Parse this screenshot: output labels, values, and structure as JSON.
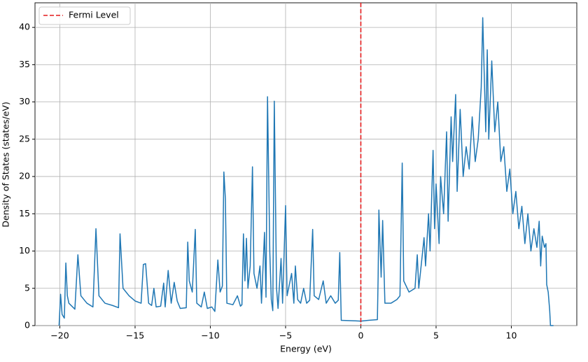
{
  "chart_data": {
    "type": "line",
    "xlabel": "Energy (eV)",
    "ylabel": "Density of States (states/eV)",
    "xlim": [
      -21.65,
      14.35
    ],
    "ylim": [
      0,
      43.3
    ],
    "xticks": [
      {
        "value": -20,
        "label": "−20"
      },
      {
        "value": -15,
        "label": "−15"
      },
      {
        "value": -10,
        "label": "−10"
      },
      {
        "value": -5,
        "label": "−5"
      },
      0,
      5,
      10
    ],
    "yticks": [
      0,
      5,
      10,
      15,
      20,
      25,
      30,
      35,
      40
    ],
    "grid": true,
    "legend": "upper left",
    "x": [
      -20.05,
      -19.95,
      -19.85,
      -19.7,
      -19.6,
      -19.5,
      -19.4,
      -19.0,
      -18.8,
      -18.6,
      -18.2,
      -17.8,
      -17.6,
      -17.4,
      -17.0,
      -16.5,
      -16.1,
      -16.0,
      -15.8,
      -15.4,
      -15.0,
      -14.6,
      -14.45,
      -14.3,
      -14.1,
      -13.9,
      -13.75,
      -13.6,
      -13.3,
      -13.1,
      -13.0,
      -12.8,
      -12.6,
      -12.4,
      -12.2,
      -12.0,
      -11.6,
      -11.5,
      -11.4,
      -11.2,
      -11.0,
      -10.9,
      -10.6,
      -10.4,
      -10.2,
      -9.9,
      -9.7,
      -9.5,
      -9.35,
      -9.2,
      -9.1,
      -9.0,
      -8.9,
      -8.5,
      -8.2,
      -8.0,
      -7.9,
      -7.8,
      -7.7,
      -7.6,
      -7.5,
      -7.35,
      -7.2,
      -7.1,
      -6.9,
      -6.7,
      -6.6,
      -6.4,
      -6.3,
      -6.2,
      -6.05,
      -5.95,
      -5.85,
      -5.75,
      -5.6,
      -5.5,
      -5.3,
      -5.2,
      -5.0,
      -4.9,
      -4.6,
      -4.45,
      -4.35,
      -4.2,
      -4.0,
      -3.8,
      -3.6,
      -3.4,
      -3.2,
      -3.1,
      -2.8,
      -2.5,
      -2.3,
      -2.0,
      -1.7,
      -1.5,
      -1.4,
      -1.3,
      -0.5,
      0,
      0.5,
      1.1,
      1.15,
      1.2,
      1.35,
      1.45,
      1.6,
      2.0,
      2.4,
      2.6,
      2.75,
      2.85,
      3.2,
      3.6,
      3.75,
      3.85,
      4.1,
      4.2,
      4.3,
      4.5,
      4.6,
      4.8,
      4.9,
      5.0,
      5.2,
      5.3,
      5.5,
      5.7,
      5.8,
      6.0,
      6.1,
      6.3,
      6.4,
      6.6,
      6.8,
      7.0,
      7.2,
      7.4,
      7.6,
      7.8,
      8.0,
      8.1,
      8.3,
      8.4,
      8.5,
      8.7,
      8.9,
      9.1,
      9.3,
      9.5,
      9.7,
      9.9,
      10.1,
      10.3,
      10.5,
      10.7,
      10.9,
      11.1,
      11.3,
      11.5,
      11.7,
      11.85,
      11.95,
      12.05,
      12.2,
      12.3,
      12.35,
      12.45,
      12.55,
      12.6,
      12.8
    ],
    "series": [
      {
        "color": "#1f77b4",
        "values": [
          0,
          4.2,
          1.5,
          1,
          8.4,
          4,
          3,
          2.2,
          9.5,
          4,
          3,
          2.5,
          13,
          4,
          3,
          2.7,
          2.4,
          12.3,
          5,
          4,
          3.3,
          3,
          8.2,
          8.3,
          3,
          2.7,
          5,
          2.5,
          2.6,
          5.7,
          2.5,
          7.4,
          3,
          5.8,
          3.3,
          2.3,
          2.4,
          11.2,
          6,
          4.5,
          12.9,
          3,
          2.5,
          4.5,
          2.3,
          2.5,
          1.9,
          8.8,
          4.5,
          5.3,
          20.6,
          17,
          3,
          2.8,
          4,
          2.6,
          2.8,
          12.3,
          6,
          11.7,
          5,
          8,
          21.3,
          7,
          5,
          8,
          3,
          12.5,
          3.8,
          30.7,
          10,
          3.5,
          2,
          30.1,
          5,
          2.3,
          9,
          3,
          16.1,
          4,
          7,
          3,
          8,
          3.5,
          3,
          5,
          3,
          3.4,
          12.9,
          4,
          3.5,
          6,
          3,
          4,
          3,
          3.4,
          9.8,
          0.7,
          0.65,
          0.6,
          0.7,
          0.8,
          6.6,
          15.5,
          6.5,
          14.1,
          3,
          3,
          3.5,
          4,
          21.8,
          6,
          4.5,
          5,
          9.5,
          5,
          9.8,
          11.8,
          8,
          15,
          10,
          23.5,
          13,
          19,
          11,
          20,
          15,
          26,
          14,
          28,
          22,
          31,
          18,
          29,
          20,
          24,
          21,
          28,
          22,
          25,
          32,
          41.3,
          26,
          37,
          25,
          35.5,
          26,
          30,
          22,
          24,
          18,
          21,
          15,
          18,
          13,
          16,
          11,
          15,
          10,
          13,
          10.5,
          14,
          8,
          12,
          10.5,
          11,
          5.5,
          4.5,
          2,
          0,
          0
        ]
      }
    ],
    "vlines": [
      {
        "x": 0,
        "label": "Fermi Level",
        "color": "#e41a1c"
      }
    ]
  }
}
